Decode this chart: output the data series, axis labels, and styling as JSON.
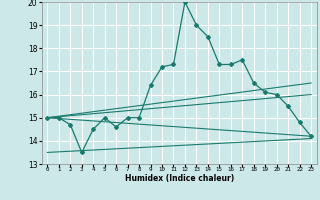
{
  "title": "",
  "xlabel": "Humidex (Indice chaleur)",
  "bg_color": "#cce8e8",
  "grid_color": "#ffffff",
  "line_color": "#1a7a6e",
  "xlim": [
    -0.5,
    23.5
  ],
  "ylim": [
    13,
    20
  ],
  "xticks": [
    0,
    1,
    2,
    3,
    4,
    5,
    6,
    7,
    8,
    9,
    10,
    11,
    12,
    13,
    14,
    15,
    16,
    17,
    18,
    19,
    20,
    21,
    22,
    23
  ],
  "yticks": [
    13,
    14,
    15,
    16,
    17,
    18,
    19,
    20
  ],
  "main_x": [
    0,
    1,
    2,
    3,
    4,
    5,
    6,
    7,
    8,
    9,
    10,
    11,
    12,
    13,
    14,
    15,
    16,
    17,
    18,
    19,
    20,
    21,
    22,
    23
  ],
  "main_y": [
    15.0,
    15.0,
    14.7,
    13.5,
    14.5,
    15.0,
    14.6,
    15.0,
    15.0,
    16.4,
    17.2,
    17.3,
    20.0,
    19.0,
    18.5,
    17.3,
    17.3,
    17.5,
    16.5,
    16.1,
    16.0,
    15.5,
    14.8,
    14.2
  ],
  "line1_x": [
    0,
    23
  ],
  "line1_y": [
    15.0,
    16.5
  ],
  "line2_x": [
    0,
    23
  ],
  "line2_y": [
    15.0,
    16.0
  ],
  "line3_x": [
    0,
    23
  ],
  "line3_y": [
    15.0,
    14.2
  ],
  "line4_x": [
    0,
    23
  ],
  "line4_y": [
    13.5,
    14.1
  ]
}
